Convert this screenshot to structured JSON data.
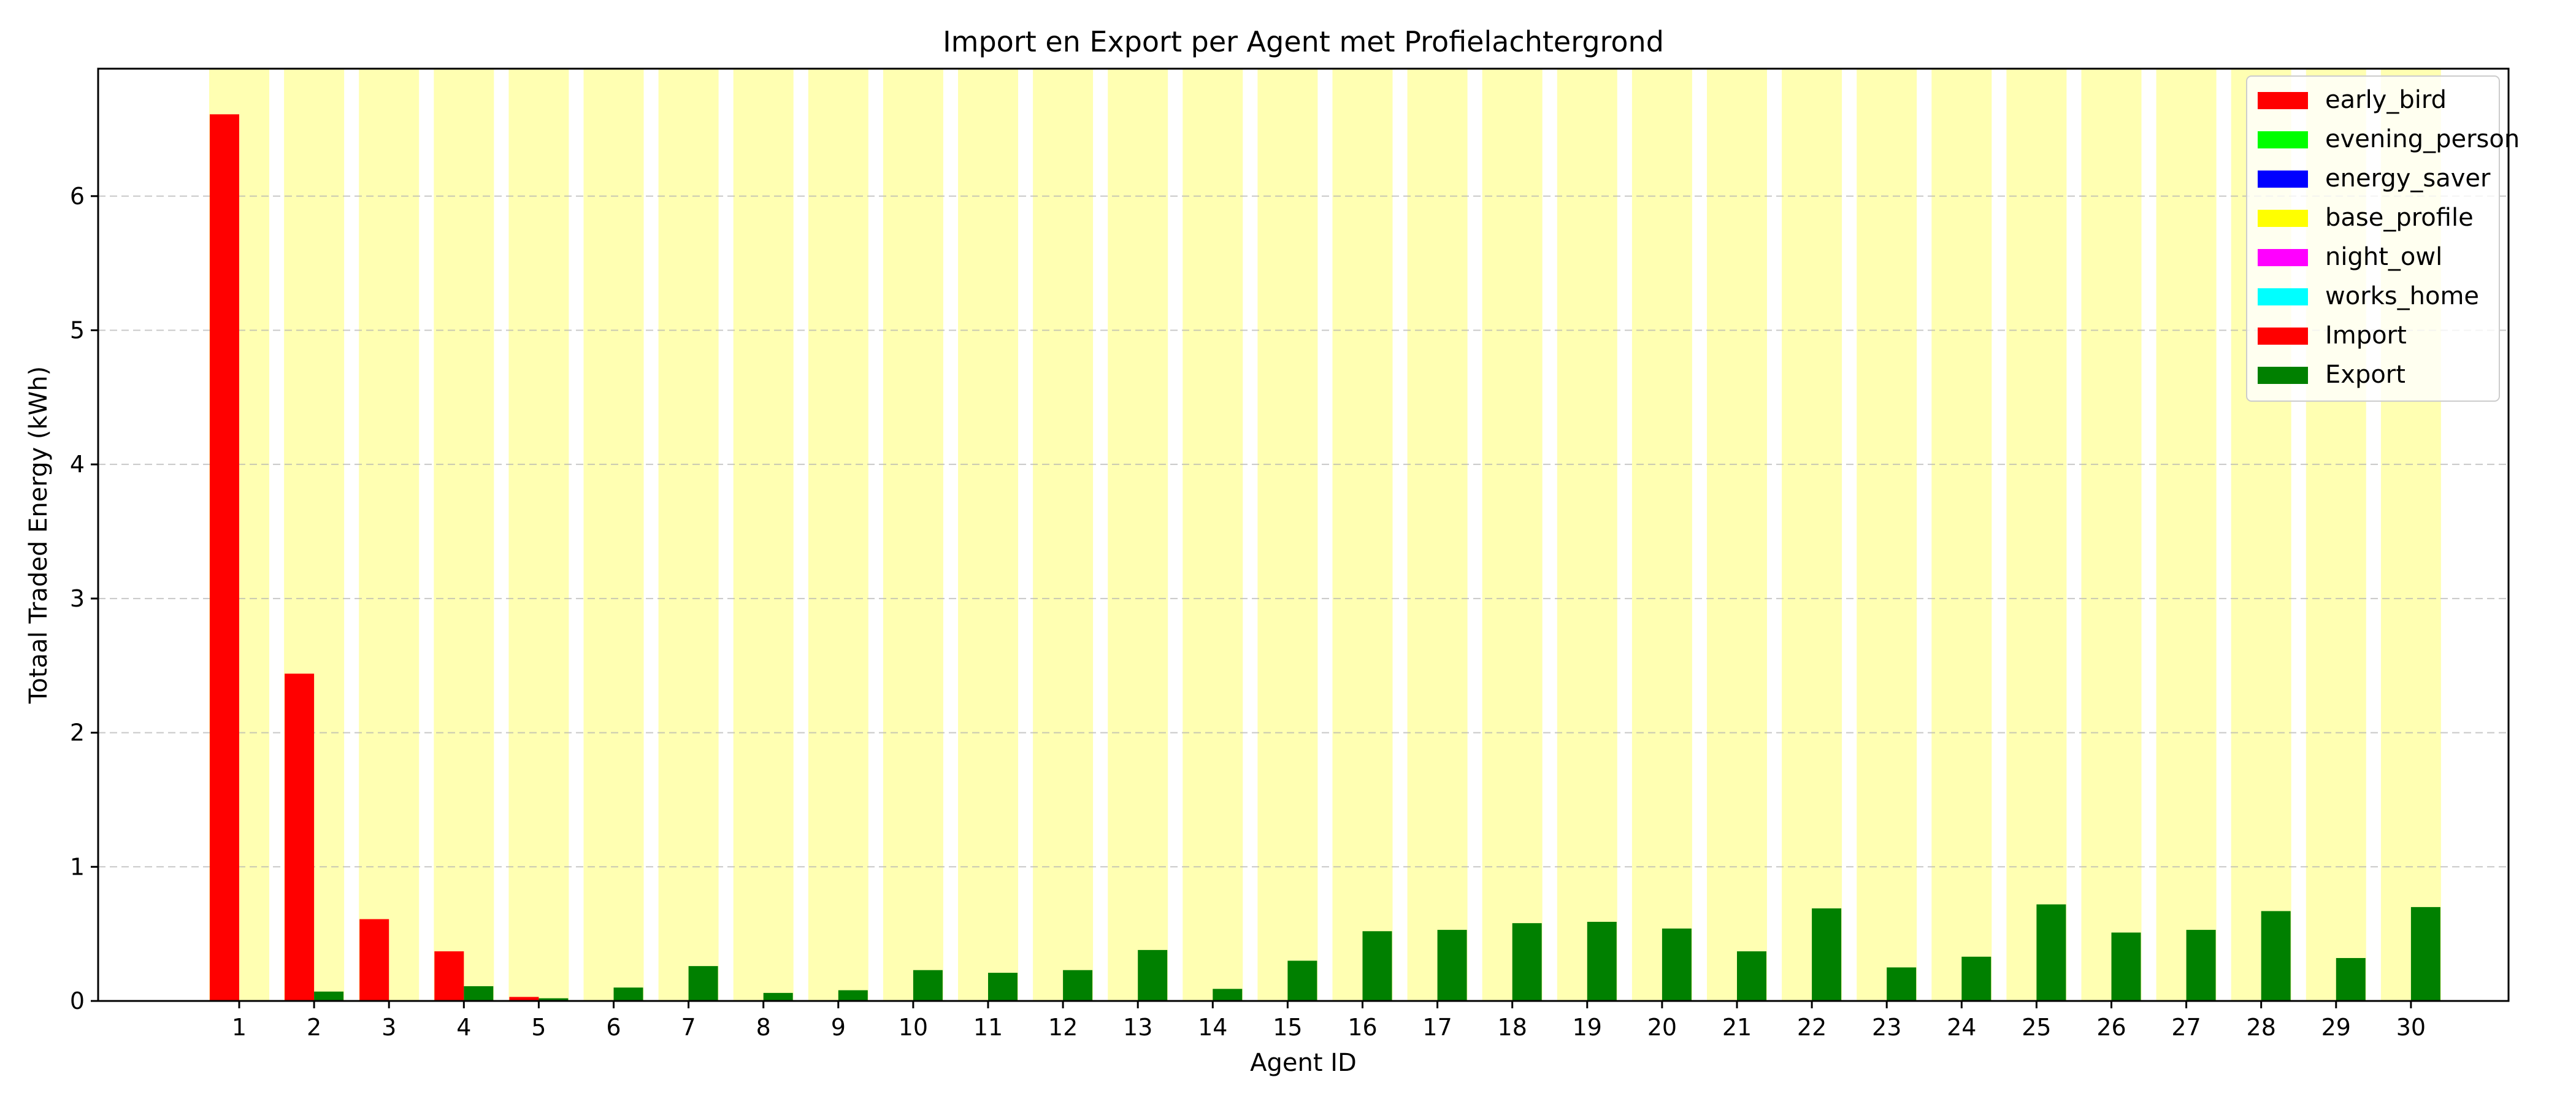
{
  "chart_data": {
    "type": "bar",
    "title": "Import en Export per Agent met Profielachtergrond",
    "xlabel": "Agent ID",
    "ylabel": "Totaal Traded Energy (kWh)",
    "ylim": [
      0,
      6.95
    ],
    "yticks": [
      0,
      1,
      2,
      3,
      4,
      5,
      6
    ],
    "grid": "y-dashed",
    "legend_position": "top-right",
    "categories": [
      "1",
      "2",
      "3",
      "4",
      "5",
      "6",
      "7",
      "8",
      "9",
      "10",
      "11",
      "12",
      "13",
      "14",
      "15",
      "16",
      "17",
      "18",
      "19",
      "20",
      "21",
      "22",
      "23",
      "24",
      "25",
      "26",
      "27",
      "28",
      "29",
      "30"
    ],
    "series": [
      {
        "name": "Import",
        "color": "#ff0000",
        "values": [
          6.61,
          2.44,
          0.61,
          0.37,
          0.03,
          0,
          0,
          0,
          0,
          0,
          0,
          0,
          0,
          0,
          0,
          0,
          0,
          0,
          0,
          0,
          0,
          0,
          0,
          0,
          0,
          0,
          0,
          0,
          0,
          0
        ]
      },
      {
        "name": "Export",
        "color": "#008000",
        "values": [
          0,
          0.07,
          0,
          0.11,
          0.02,
          0.1,
          0.26,
          0.06,
          0.08,
          0.23,
          0.21,
          0.23,
          0.38,
          0.09,
          0.3,
          0.52,
          0.53,
          0.58,
          0.59,
          0.54,
          0.37,
          0.69,
          0.25,
          0.33,
          0.72,
          0.51,
          0.53,
          0.67,
          0.32,
          0.7
        ]
      }
    ],
    "background_profile": [
      "base_profile",
      "base_profile",
      "base_profile",
      "base_profile",
      "base_profile",
      "base_profile",
      "base_profile",
      "base_profile",
      "base_profile",
      "base_profile",
      "base_profile",
      "base_profile",
      "base_profile",
      "base_profile",
      "base_profile",
      "base_profile",
      "base_profile",
      "base_profile",
      "base_profile",
      "base_profile",
      "base_profile",
      "base_profile",
      "base_profile",
      "base_profile",
      "base_profile",
      "base_profile",
      "base_profile",
      "base_profile",
      "base_profile",
      "base_profile"
    ],
    "profile_colors": {
      "early_bird": "#ff0000",
      "evening_person": "#00ff00",
      "energy_saver": "#0000ff",
      "base_profile": "#ffff00",
      "night_owl": "#ff00ff",
      "works_home": "#00ffff"
    },
    "legend": [
      {
        "label": "early_bird",
        "color": "#ff0000"
      },
      {
        "label": "evening_person",
        "color": "#00ff00"
      },
      {
        "label": "energy_saver",
        "color": "#0000ff"
      },
      {
        "label": "base_profile",
        "color": "#ffff00"
      },
      {
        "label": "night_owl",
        "color": "#ff00ff"
      },
      {
        "label": "works_home",
        "color": "#00ffff"
      },
      {
        "label": "Import",
        "color": "#ff0000"
      },
      {
        "label": "Export",
        "color": "#008000"
      }
    ]
  }
}
